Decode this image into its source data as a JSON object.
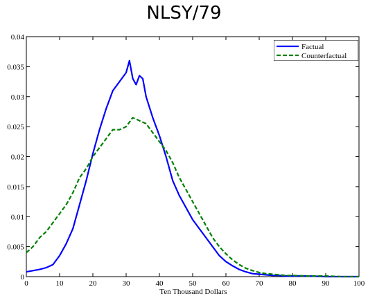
{
  "chart_data": {
    "type": "line",
    "title": "NLSY/79",
    "xlabel": "Ten Thousand Dollars",
    "ylabel": "",
    "xlim": [
      0,
      100
    ],
    "ylim": [
      0,
      0.04
    ],
    "xticks": [
      "0",
      "10",
      "20",
      "30",
      "40",
      "50",
      "60",
      "70",
      "80",
      "90",
      "100"
    ],
    "yticks": [
      "0",
      "0.005",
      "0.01",
      "0.015",
      "0.02",
      "0.025",
      "0.03",
      "0.035",
      "0.04"
    ],
    "grid": false,
    "legend_position": "top-right",
    "series": [
      {
        "name": "Factual",
        "color": "#0000ff",
        "style": "solid",
        "x": [
          0,
          2,
          4,
          6,
          8,
          10,
          12,
          14,
          16,
          18,
          20,
          22,
          24,
          26,
          28,
          30,
          31,
          32,
          33,
          34,
          35,
          36,
          38,
          40,
          42,
          44,
          46,
          48,
          50,
          52,
          54,
          56,
          58,
          60,
          62,
          64,
          66,
          68,
          70,
          72,
          74,
          76,
          78,
          80,
          85,
          90,
          95,
          100
        ],
        "y": [
          0.0008,
          0.001,
          0.0012,
          0.0015,
          0.002,
          0.0035,
          0.0055,
          0.008,
          0.012,
          0.016,
          0.0205,
          0.0245,
          0.028,
          0.031,
          0.0325,
          0.034,
          0.036,
          0.033,
          0.032,
          0.0335,
          0.033,
          0.03,
          0.0265,
          0.0235,
          0.02,
          0.016,
          0.0135,
          0.0115,
          0.0095,
          0.008,
          0.0065,
          0.005,
          0.0035,
          0.0025,
          0.0018,
          0.0012,
          0.0008,
          0.0005,
          0.0004,
          0.0003,
          0.0002,
          0.0002,
          0.0001,
          0.0001,
          0.0001,
          0.0,
          0.0,
          0.0
        ]
      },
      {
        "name": "Counterfactual",
        "color": "#008000",
        "style": "dashed",
        "x": [
          0,
          2,
          4,
          6,
          8,
          10,
          12,
          14,
          16,
          18,
          20,
          22,
          24,
          26,
          28,
          30,
          32,
          34,
          36,
          38,
          40,
          42,
          44,
          46,
          48,
          50,
          52,
          54,
          56,
          58,
          60,
          62,
          64,
          66,
          68,
          70,
          72,
          74,
          76,
          78,
          80,
          85,
          90,
          95,
          100
        ],
        "y": [
          0.004,
          0.005,
          0.0065,
          0.0075,
          0.009,
          0.0105,
          0.012,
          0.014,
          0.0165,
          0.018,
          0.02,
          0.0215,
          0.023,
          0.0245,
          0.0245,
          0.025,
          0.0265,
          0.026,
          0.0255,
          0.024,
          0.0225,
          0.021,
          0.019,
          0.0165,
          0.0145,
          0.0125,
          0.0105,
          0.0085,
          0.0065,
          0.005,
          0.0038,
          0.0028,
          0.002,
          0.0014,
          0.001,
          0.0007,
          0.0005,
          0.0004,
          0.0003,
          0.0002,
          0.0002,
          0.0001,
          0.0001,
          0.0,
          0.0
        ]
      }
    ]
  }
}
